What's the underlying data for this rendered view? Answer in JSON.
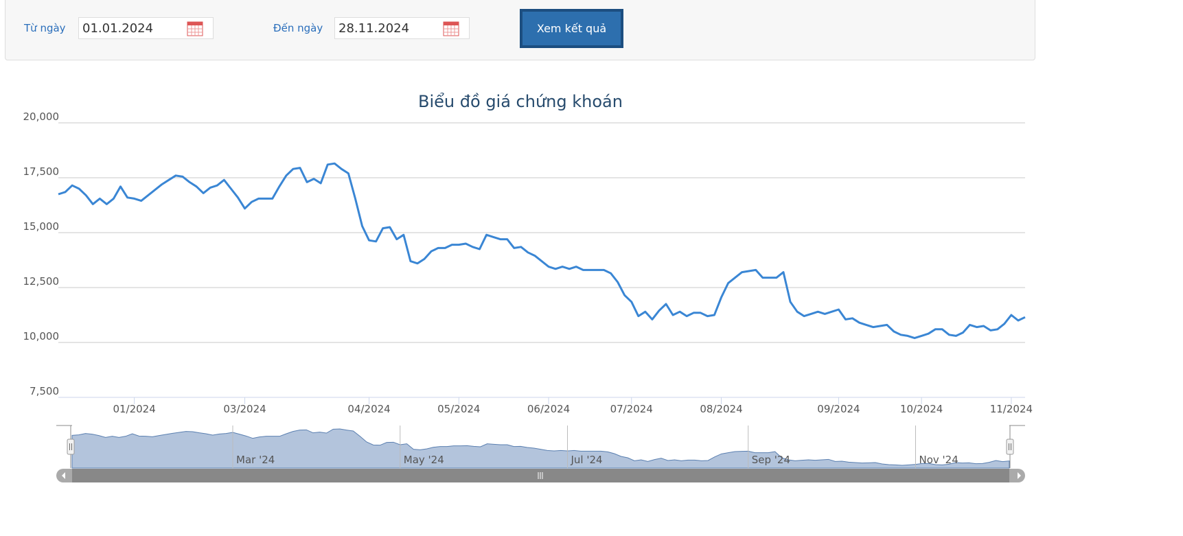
{
  "form": {
    "from_label": "Từ ngày",
    "from_value": "01.01.2024",
    "to_label": "Đến ngày",
    "to_value": "28.11.2024",
    "button": "Xem kết quả"
  },
  "chart_data": {
    "type": "line",
    "title": "Biểu đồ giá chứng khoán",
    "series": [
      {
        "color": "#3a86d4",
        "values": [
          16750,
          16850,
          17150,
          17000,
          16700,
          16300,
          16550,
          16300,
          16550,
          17100,
          16600,
          16550,
          16450,
          16700,
          16950,
          17200,
          17400,
          17600,
          17550,
          17300,
          17100,
          16800,
          17050,
          17150,
          17400,
          17000,
          16600,
          16100,
          16400,
          16550,
          16550,
          16550,
          17100,
          17600,
          17900,
          17950,
          17300,
          17450,
          17250,
          18100,
          18150,
          17900,
          17700,
          16550,
          15300,
          14650,
          14600,
          15200,
          15250,
          14700,
          14900,
          13700,
          13600,
          13800,
          14150,
          14300,
          14300,
          14450,
          14450,
          14500,
          14350,
          14250,
          14900,
          14800,
          14700,
          14700,
          14300,
          14350,
          14100,
          13950,
          13700,
          13450,
          13350,
          13450,
          13350,
          13450,
          13300,
          13300,
          13300,
          13300,
          13150,
          12750,
          12150,
          11850,
          11200,
          11400,
          11050,
          11450,
          11750,
          11250,
          11400,
          11200,
          11350,
          11350,
          11200,
          11250,
          12050,
          12700,
          12950,
          13200,
          13250,
          13300,
          12950,
          12950,
          12950,
          13200,
          11850,
          11400,
          11200,
          11300,
          11400,
          11300,
          11400,
          11500,
          11050,
          11100,
          10900,
          10800,
          10700,
          10750,
          10800,
          10500,
          10350,
          10300,
          10200,
          10300,
          10400,
          10600,
          10600,
          10350,
          10300,
          10450,
          10800,
          10700,
          10750,
          10550,
          10600,
          10850,
          11250,
          11000,
          11150
        ]
      }
    ],
    "xlim": [
      0,
      140
    ],
    "xticks": [
      {
        "value": 11,
        "label": "01/2024"
      },
      {
        "value": 27,
        "label": "03/2024"
      },
      {
        "value": 45,
        "label": "04/2024"
      },
      {
        "value": 58,
        "label": "05/2024"
      },
      {
        "value": 71,
        "label": "06/2024"
      },
      {
        "value": 83,
        "label": "07/2024"
      },
      {
        "value": 96,
        "label": "08/2024"
      },
      {
        "value": 113,
        "label": "09/2024"
      },
      {
        "value": 125,
        "label": "10/2024"
      },
      {
        "value": 138,
        "label": "11/2024"
      }
    ],
    "ylim": [
      7500,
      20000
    ],
    "yticks": [
      {
        "value": 7500,
        "label": "7,500"
      },
      {
        "value": 10000,
        "label": "10,000"
      },
      {
        "value": 12500,
        "label": "12,500"
      },
      {
        "value": 15000,
        "label": "15,000"
      },
      {
        "value": 17500,
        "label": "17,500"
      },
      {
        "value": 20000,
        "label": "20,000"
      }
    ],
    "grid": true,
    "navigator": {
      "ticks": [
        {
          "value": 24,
          "label": "Mar '24"
        },
        {
          "value": 49,
          "label": "May '24"
        },
        {
          "value": 74,
          "label": "Jul '24"
        },
        {
          "value": 101,
          "label": "Sep '24"
        },
        {
          "value": 126,
          "label": "Nov '24"
        }
      ]
    }
  }
}
